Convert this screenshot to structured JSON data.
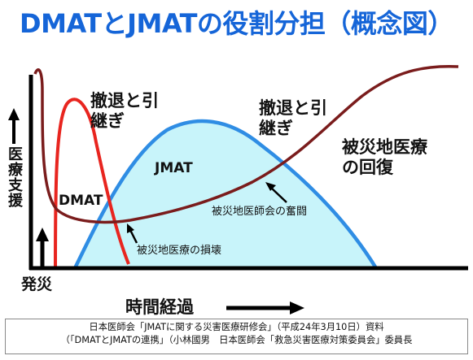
{
  "title": "DMATとJMATの役割分担（概念図）",
  "y_axis_label": "医療支援",
  "x_axis_label": "時間経過",
  "origin_label": "発災",
  "labels": {
    "handover_left": "撤退と引\n継ぎ",
    "handover_right": "撤退と引\n継ぎ",
    "dmat": "DMAT",
    "jmat": "JMAT",
    "recovery": "被災地医療\nの回復",
    "medical_assoc_effort": "被災地医師会の奮闘",
    "local_damage": "被災地医療の損壊"
  },
  "source": {
    "line1": "日本医師会「JMATに関する災害医療研修会」（平成24年3月10日）資料",
    "line2": "（「DMATとJMATの連携」（小林國男　日本医師会「救急災害医療対策委員会」委員長"
  },
  "colors": {
    "title": "#1565d8",
    "dmat_curve": "#e8251f",
    "jmat_fill": "#c8f4fa",
    "jmat_stroke": "#2f8de4",
    "local_curve": "#7a1c1c"
  }
}
